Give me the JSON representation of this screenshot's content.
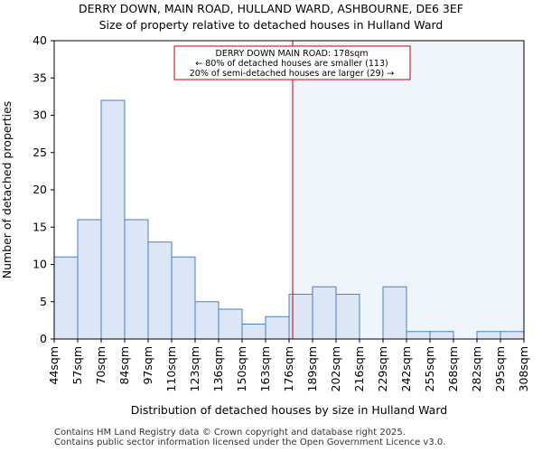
{
  "chart_data": {
    "type": "bar",
    "title": "DERRY DOWN, MAIN ROAD, HULLAND WARD, ASHBOURNE, DE6 3EF",
    "subtitle": "Size of property relative to detached houses in Hulland Ward",
    "xlabel": "Distribution of detached houses by size in Hulland Ward",
    "ylabel": "Number of detached properties",
    "ylim": [
      0,
      40
    ],
    "yticks": [
      "0",
      "5",
      "10",
      "15",
      "20",
      "25",
      "30",
      "35",
      "40"
    ],
    "bin_edges": [
      "44sqm",
      "57sqm",
      "70sqm",
      "84sqm",
      "97sqm",
      "110sqm",
      "123sqm",
      "136sqm",
      "150sqm",
      "163sqm",
      "176sqm",
      "189sqm",
      "202sqm",
      "216sqm",
      "229sqm",
      "242sqm",
      "255sqm",
      "268sqm",
      "282sqm",
      "295sqm",
      "308sqm"
    ],
    "values": [
      11,
      16,
      32,
      16,
      13,
      11,
      5,
      4,
      2,
      3,
      6,
      7,
      6,
      0,
      7,
      1,
      1,
      0,
      1,
      1
    ],
    "marker_value": 178,
    "marker_bin_start": 176,
    "marker_bin_end": 189,
    "x_min": 44,
    "x_max": 308,
    "annotation": {
      "line1": "DERRY DOWN MAIN ROAD: 178sqm",
      "line2": "← 80% of detached houses are smaller (113)",
      "line3": "20% of semi-detached houses are larger (29) →"
    },
    "colors": {
      "bar_fill": "#dce6f4",
      "bar_edge": "#4a7fc1",
      "marker": "#cc0000",
      "highlight": "#f0f4fb"
    }
  },
  "footer": {
    "line1": "Contains HM Land Registry data © Crown copyright and database right 2025.",
    "line2": "Contains public sector information licensed under the Open Government Licence v3.0."
  }
}
